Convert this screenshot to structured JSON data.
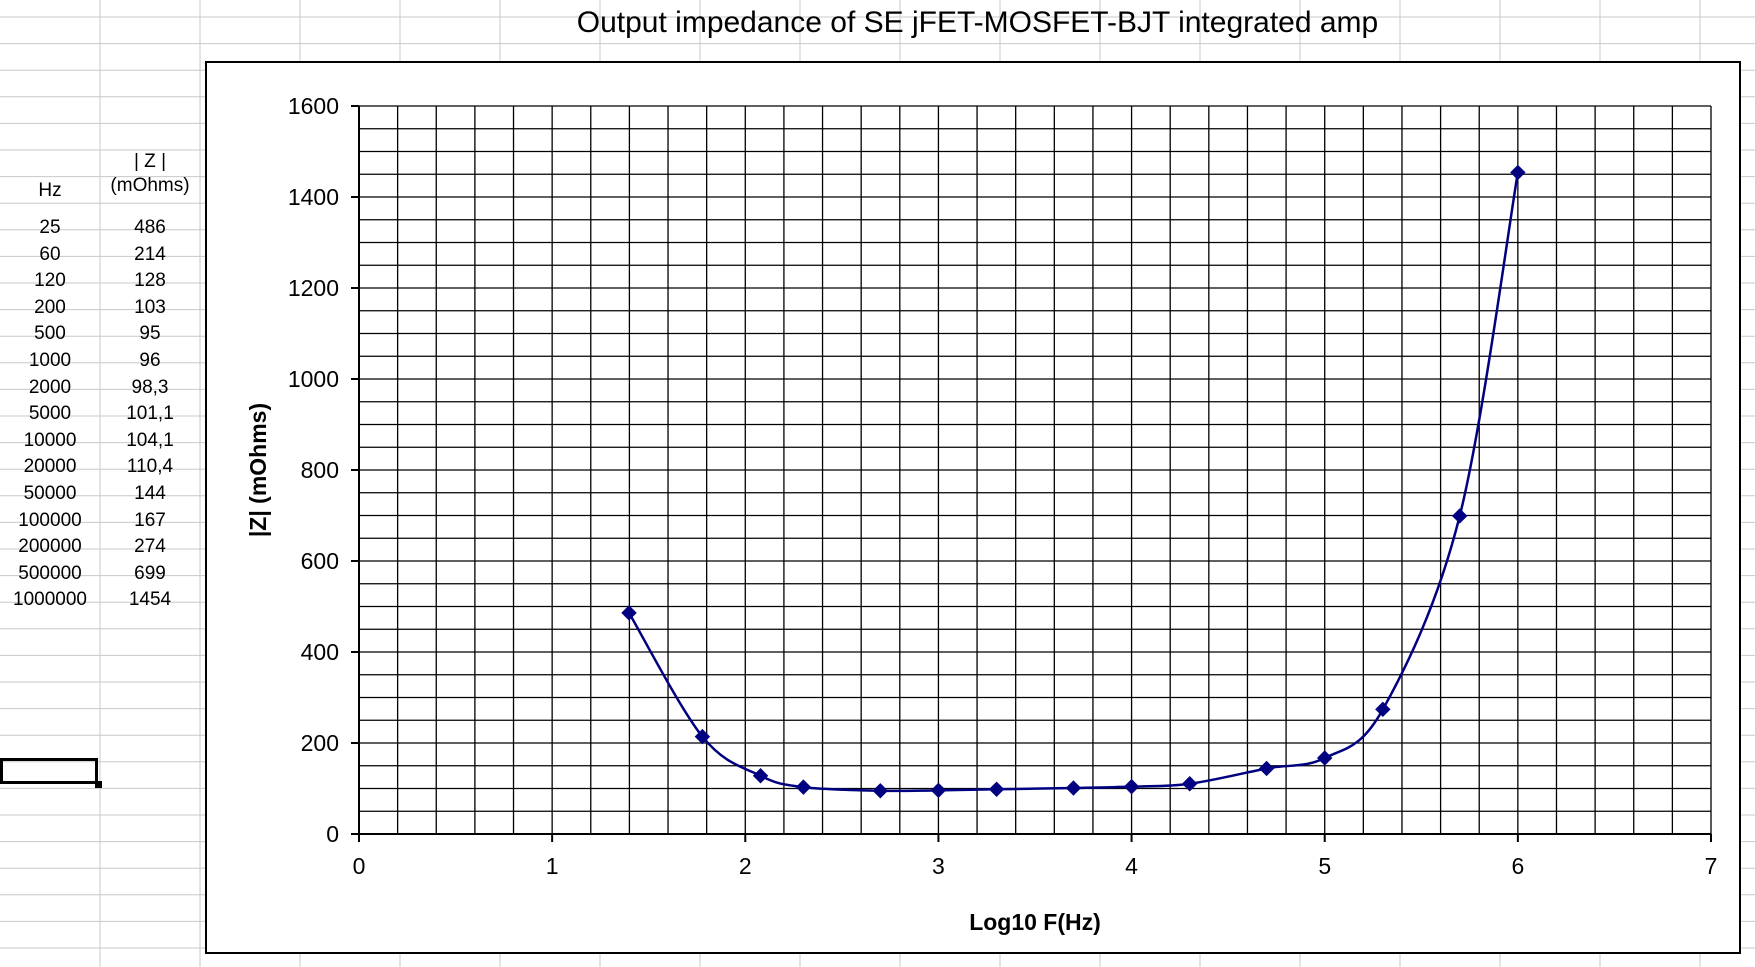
{
  "table": {
    "header_hz": "Hz",
    "header_z_line1": "| Z |",
    "header_z_line2": "(mOhms)",
    "rows": [
      {
        "hz": "25",
        "z": "486"
      },
      {
        "hz": "60",
        "z": "214"
      },
      {
        "hz": "120",
        "z": "128"
      },
      {
        "hz": "200",
        "z": "103"
      },
      {
        "hz": "500",
        "z": "95"
      },
      {
        "hz": "1000",
        "z": "96"
      },
      {
        "hz": "2000",
        "z": "98,3"
      },
      {
        "hz": "5000",
        "z": "101,1"
      },
      {
        "hz": "10000",
        "z": "104,1"
      },
      {
        "hz": "20000",
        "z": "110,4"
      },
      {
        "hz": "50000",
        "z": "144"
      },
      {
        "hz": "100000",
        "z": "167"
      },
      {
        "hz": "200000",
        "z": "274"
      },
      {
        "hz": "500000",
        "z": "699"
      },
      {
        "hz": "1000000",
        "z": "1454"
      }
    ]
  },
  "chart_data": {
    "type": "scatter",
    "title": "Output impedance of SE jFET-MOSFET-BJT integrated amp",
    "xlabel": "Log10 F(Hz)",
    "ylabel": "|Z| (mOhms)",
    "xlim": [
      0,
      7
    ],
    "ylim": [
      0,
      1600
    ],
    "xticks": [
      "0",
      "1",
      "2",
      "3",
      "4",
      "5",
      "6",
      "7"
    ],
    "yticks": [
      "0",
      "200",
      "400",
      "600",
      "800",
      "1000",
      "1200",
      "1400",
      "1600"
    ],
    "grid": true,
    "legend": "none",
    "line_style": "smoothed line with diamond markers",
    "color": "#000080",
    "series": [
      {
        "x": [
          1.398,
          1.778,
          2.079,
          2.301,
          2.699,
          3.0,
          3.301,
          3.699,
          4.0,
          4.301,
          4.699,
          5.0,
          5.301,
          5.699,
          6.0
        ],
        "y": [
          486,
          214,
          128,
          103,
          95,
          96,
          98.3,
          101.1,
          104.1,
          110.4,
          144,
          167,
          274,
          699,
          1454
        ]
      }
    ]
  }
}
